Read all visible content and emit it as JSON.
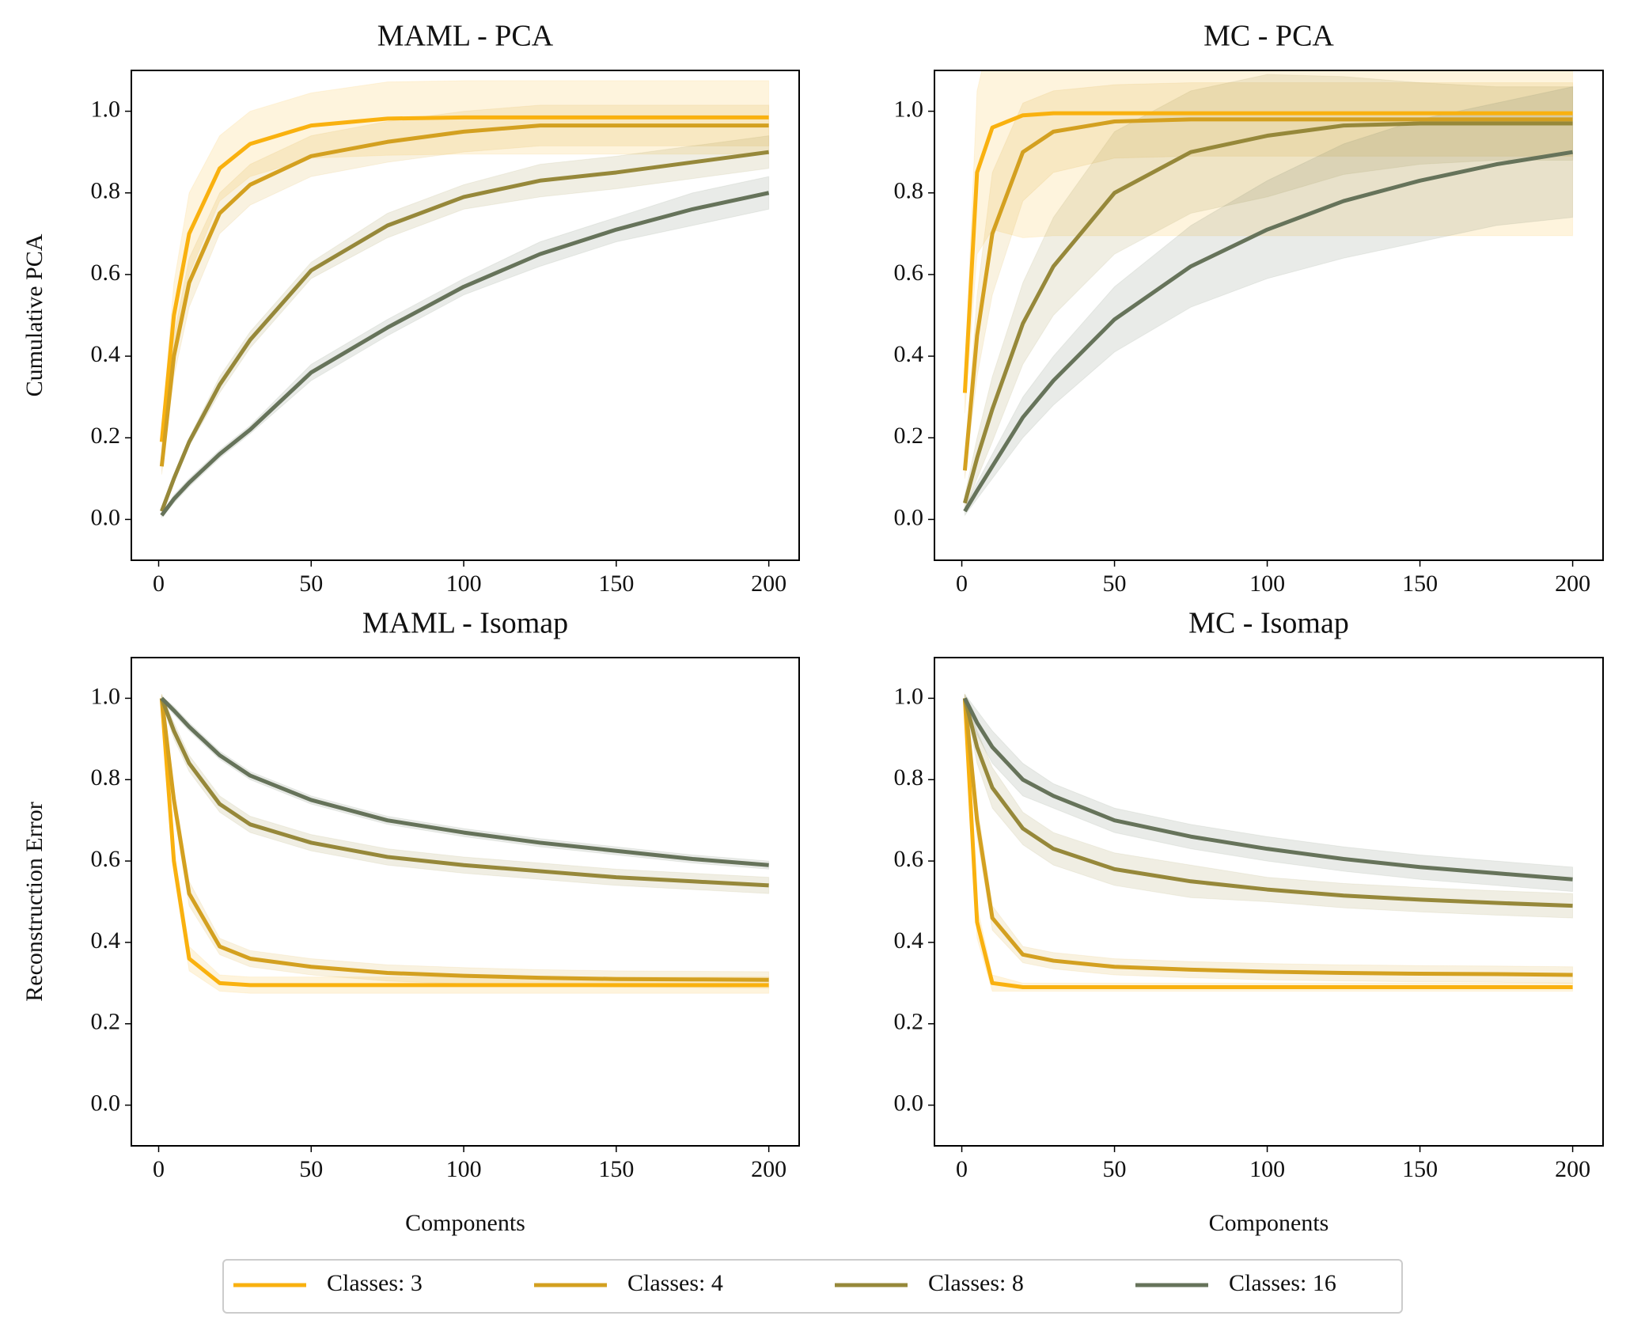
{
  "chart_data": [
    {
      "type": "line",
      "title": "MAML - PCA",
      "ylabel": "Cumulative PCA",
      "x": [
        1,
        5,
        10,
        20,
        30,
        50,
        75,
        100,
        125,
        150,
        175,
        200
      ],
      "xlim": [
        -8.95,
        209.95
      ],
      "ylim": [
        -0.1,
        1.1
      ],
      "xticks": [
        0,
        50,
        100,
        150,
        200
      ],
      "yticks": [
        {
          "value": 0,
          "label": "0.0"
        },
        0.2,
        0.4,
        0.6,
        0.8,
        {
          "value": 1,
          "label": "1.0"
        }
      ],
      "series": [
        {
          "name": "Classes: 3",
          "color": "#f9b10f",
          "values": [
            0.19,
            0.5,
            0.7,
            0.86,
            0.92,
            0.965,
            0.982,
            0.985,
            0.985,
            0.985,
            0.985,
            0.985
          ],
          "std": [
            0.03,
            0.08,
            0.1,
            0.08,
            0.08,
            0.08,
            0.09,
            0.09,
            0.09,
            0.09,
            0.09,
            0.09
          ]
        },
        {
          "name": "Classes: 4",
          "color": "#d3a020",
          "values": [
            0.13,
            0.4,
            0.58,
            0.75,
            0.82,
            0.89,
            0.925,
            0.95,
            0.965,
            0.965,
            0.965,
            0.965
          ],
          "std": [
            0.02,
            0.05,
            0.06,
            0.05,
            0.05,
            0.05,
            0.05,
            0.05,
            0.05,
            0.05,
            0.05,
            0.05
          ]
        },
        {
          "name": "Classes: 8",
          "color": "#96883a",
          "values": [
            0.02,
            0.1,
            0.19,
            0.33,
            0.44,
            0.61,
            0.72,
            0.79,
            0.83,
            0.85,
            0.875,
            0.9
          ],
          "std": [
            0.01,
            0.01,
            0.01,
            0.02,
            0.02,
            0.02,
            0.03,
            0.03,
            0.04,
            0.04,
            0.04,
            0.04
          ]
        },
        {
          "name": "Classes: 16",
          "color": "#66735a",
          "values": [
            0.01,
            0.05,
            0.09,
            0.16,
            0.22,
            0.36,
            0.47,
            0.57,
            0.65,
            0.71,
            0.76,
            0.8
          ],
          "std": [
            0.005,
            0.01,
            0.01,
            0.01,
            0.01,
            0.02,
            0.02,
            0.02,
            0.03,
            0.03,
            0.04,
            0.04
          ]
        }
      ]
    },
    {
      "type": "line",
      "title": "MC - PCA",
      "x": [
        1,
        5,
        10,
        20,
        30,
        50,
        75,
        100,
        125,
        150,
        175,
        200
      ],
      "xlim": [
        -8.95,
        209.95
      ],
      "ylim": [
        -0.1,
        1.1
      ],
      "xticks": [
        0,
        50,
        100,
        150,
        200
      ],
      "yticks": [
        {
          "value": 0,
          "label": "0.0"
        },
        0.2,
        0.4,
        0.6,
        0.8,
        {
          "value": 1,
          "label": "1.0"
        }
      ],
      "series": [
        {
          "name": "Classes: 3",
          "color": "#f9b10f",
          "values": [
            0.31,
            0.85,
            0.96,
            0.99,
            0.995,
            0.995,
            0.995,
            0.995,
            0.995,
            0.995,
            0.995,
            0.995
          ],
          "std": [
            0.05,
            0.2,
            0.25,
            0.3,
            0.3,
            0.3,
            0.3,
            0.3,
            0.3,
            0.3,
            0.3,
            0.3
          ]
        },
        {
          "name": "Classes: 4",
          "color": "#d3a020",
          "values": [
            0.12,
            0.45,
            0.7,
            0.9,
            0.95,
            0.975,
            0.98,
            0.98,
            0.98,
            0.98,
            0.98,
            0.98
          ],
          "std": [
            0.02,
            0.1,
            0.15,
            0.12,
            0.1,
            0.09,
            0.09,
            0.09,
            0.09,
            0.09,
            0.09,
            0.09
          ]
        },
        {
          "name": "Classes: 8",
          "color": "#96883a",
          "values": [
            0.04,
            0.15,
            0.27,
            0.48,
            0.62,
            0.8,
            0.9,
            0.94,
            0.965,
            0.97,
            0.97,
            0.97
          ],
          "std": [
            0.02,
            0.05,
            0.08,
            0.1,
            0.12,
            0.15,
            0.15,
            0.15,
            0.12,
            0.1,
            0.09,
            0.09
          ]
        },
        {
          "name": "Classes: 16",
          "color": "#66735a",
          "values": [
            0.02,
            0.07,
            0.13,
            0.25,
            0.34,
            0.49,
            0.62,
            0.71,
            0.78,
            0.83,
            0.87,
            0.9
          ],
          "std": [
            0.01,
            0.02,
            0.03,
            0.05,
            0.06,
            0.08,
            0.1,
            0.12,
            0.14,
            0.15,
            0.15,
            0.16
          ]
        }
      ]
    },
    {
      "type": "line",
      "title": "MAML - Isomap",
      "ylabel": "Reconstruction Error",
      "xlabel": "Components",
      "x": [
        1,
        5,
        10,
        20,
        30,
        50,
        75,
        100,
        125,
        150,
        175,
        200
      ],
      "xlim": [
        -8.95,
        209.95
      ],
      "ylim": [
        -0.1,
        1.1
      ],
      "xticks": [
        0,
        50,
        100,
        150,
        200
      ],
      "yticks": [
        {
          "value": 0,
          "label": "0.0"
        },
        0.2,
        0.4,
        0.6,
        0.8,
        {
          "value": 1,
          "label": "1.0"
        }
      ],
      "series": [
        {
          "name": "Classes: 3",
          "color": "#f9b10f",
          "values": [
            1.0,
            0.6,
            0.36,
            0.3,
            0.295,
            0.295,
            0.295,
            0.295,
            0.295,
            0.295,
            0.295,
            0.295
          ],
          "std": [
            0.01,
            0.03,
            0.03,
            0.02,
            0.02,
            0.02,
            0.02,
            0.02,
            0.02,
            0.02,
            0.02,
            0.02
          ]
        },
        {
          "name": "Classes: 4",
          "color": "#d3a020",
          "values": [
            1.0,
            0.75,
            0.52,
            0.39,
            0.36,
            0.34,
            0.325,
            0.318,
            0.313,
            0.31,
            0.309,
            0.308
          ],
          "std": [
            0.01,
            0.03,
            0.03,
            0.02,
            0.02,
            0.02,
            0.02,
            0.02,
            0.02,
            0.02,
            0.02,
            0.02
          ]
        },
        {
          "name": "Classes: 8",
          "color": "#96883a",
          "values": [
            1.0,
            0.92,
            0.84,
            0.74,
            0.69,
            0.645,
            0.61,
            0.59,
            0.575,
            0.56,
            0.55,
            0.54
          ],
          "std": [
            0.01,
            0.02,
            0.02,
            0.02,
            0.02,
            0.02,
            0.02,
            0.02,
            0.02,
            0.02,
            0.02,
            0.02
          ]
        },
        {
          "name": "Classes: 16",
          "color": "#66735a",
          "values": [
            1.0,
            0.97,
            0.93,
            0.86,
            0.81,
            0.75,
            0.7,
            0.67,
            0.645,
            0.625,
            0.605,
            0.59
          ],
          "std": [
            0.005,
            0.01,
            0.01,
            0.01,
            0.01,
            0.01,
            0.01,
            0.01,
            0.01,
            0.01,
            0.01,
            0.01
          ]
        }
      ]
    },
    {
      "type": "line",
      "title": "MC - Isomap",
      "xlabel": "Components",
      "x": [
        1,
        5,
        10,
        20,
        30,
        50,
        75,
        100,
        125,
        150,
        175,
        200
      ],
      "xlim": [
        -8.95,
        209.95
      ],
      "ylim": [
        -0.1,
        1.1
      ],
      "xticks": [
        0,
        50,
        100,
        150,
        200
      ],
      "yticks": [
        {
          "value": 0,
          "label": "0.0"
        },
        0.2,
        0.4,
        0.6,
        0.8,
        {
          "value": 1,
          "label": "1.0"
        }
      ],
      "series": [
        {
          "name": "Classes: 3",
          "color": "#f9b10f",
          "values": [
            1.0,
            0.45,
            0.3,
            0.29,
            0.29,
            0.29,
            0.29,
            0.29,
            0.29,
            0.29,
            0.29,
            0.29
          ],
          "std": [
            0.01,
            0.04,
            0.02,
            0.01,
            0.01,
            0.01,
            0.01,
            0.01,
            0.01,
            0.01,
            0.01,
            0.01
          ]
        },
        {
          "name": "Classes: 4",
          "color": "#d3a020",
          "values": [
            1.0,
            0.7,
            0.46,
            0.37,
            0.355,
            0.34,
            0.333,
            0.328,
            0.325,
            0.323,
            0.322,
            0.32
          ],
          "std": [
            0.01,
            0.04,
            0.03,
            0.02,
            0.02,
            0.02,
            0.02,
            0.02,
            0.02,
            0.02,
            0.02,
            0.02
          ]
        },
        {
          "name": "Classes: 8",
          "color": "#96883a",
          "values": [
            1.0,
            0.88,
            0.78,
            0.68,
            0.63,
            0.58,
            0.55,
            0.53,
            0.515,
            0.505,
            0.497,
            0.49
          ],
          "std": [
            0.01,
            0.04,
            0.05,
            0.04,
            0.04,
            0.04,
            0.04,
            0.03,
            0.03,
            0.03,
            0.03,
            0.03
          ]
        },
        {
          "name": "Classes: 16",
          "color": "#66735a",
          "values": [
            1.0,
            0.94,
            0.88,
            0.8,
            0.76,
            0.7,
            0.66,
            0.63,
            0.605,
            0.585,
            0.57,
            0.555
          ],
          "std": [
            0.01,
            0.03,
            0.04,
            0.04,
            0.03,
            0.03,
            0.03,
            0.03,
            0.03,
            0.03,
            0.03,
            0.03
          ]
        }
      ]
    }
  ]
}
